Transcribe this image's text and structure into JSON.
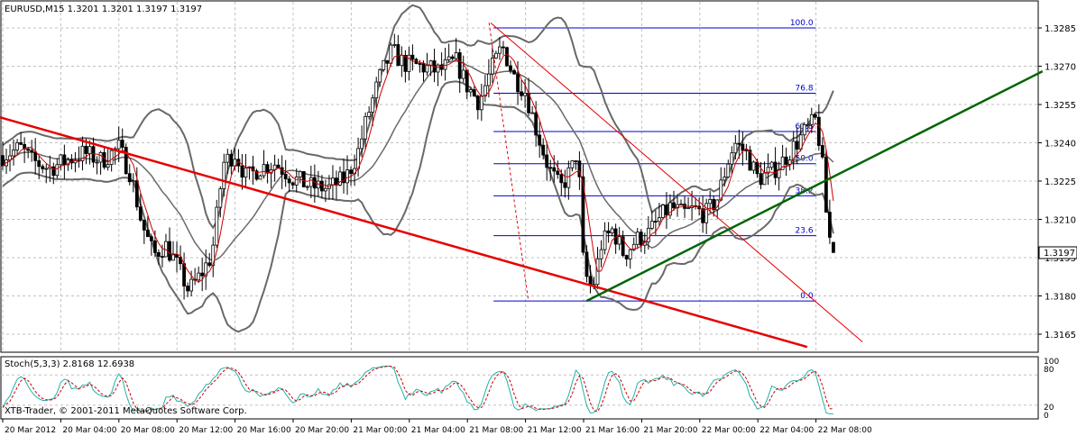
{
  "header": {
    "symbol_line": "EURUSD,M15  1.3201 1.3201 1.3197 1.3197"
  },
  "indicator": {
    "label": "Stoch(5,3,3) 2.8168 12.6938",
    "levels": [
      "80",
      "20"
    ],
    "axis_top": "100",
    "axis_bottom": "0"
  },
  "copyright": "XTB-Trader, © 2001-2011 MetaQuotes Software Corp.",
  "price_axis": {
    "ticks": [
      "1.3285",
      "1.3270",
      "1.3255",
      "1.3240",
      "1.3225",
      "1.3210",
      "1.3195",
      "1.3180",
      "1.3165"
    ],
    "current_price": "1.3197"
  },
  "time_axis": {
    "ticks": [
      "20 Mar 2012",
      "20 Mar 04:00",
      "20 Mar 08:00",
      "20 Mar 12:00",
      "20 Mar 16:00",
      "20 Mar 20:00",
      "21 Mar 00:00",
      "21 Mar 04:00",
      "21 Mar 08:00",
      "21 Mar 12:00",
      "21 Mar 16:00",
      "21 Mar 20:00",
      "22 Mar 00:00",
      "22 Mar 04:00",
      "22 Mar 08:00"
    ]
  },
  "fibonacci": {
    "levels": [
      "100.0",
      "76.8",
      "61.8",
      "50.0",
      "38.2",
      "23.6",
      "0.0"
    ],
    "values": [
      1.3285,
      1.32594,
      1.32444,
      1.32318,
      1.32192,
      1.32036,
      1.3178
    ]
  },
  "colors": {
    "background": "#ffffff",
    "grid": "#c0c0c0",
    "candle": "#000000",
    "bollinger": "#696969",
    "moving_average": "#cc0000",
    "downtrend_line": "#e60000",
    "uptrend_line": "#006400",
    "fibonacci": "#0000cc",
    "stoch_main": "#20b2aa",
    "stoch_signal": "#cc0000",
    "price_tag_bg": "#ffffff"
  },
  "chart_data": {
    "type": "candlestick",
    "title": "EURUSD,M15",
    "symbol": "EURUSD",
    "timeframe": "M15",
    "last_ohlc": {
      "open": 1.3201,
      "high": 1.3201,
      "low": 1.3197,
      "close": 1.3197
    },
    "ylim": [
      1.3159,
      1.3294
    ],
    "x_categories": [
      "20 Mar 2012",
      "20 Mar 04:00",
      "20 Mar 08:00",
      "20 Mar 12:00",
      "20 Mar 16:00",
      "20 Mar 20:00",
      "21 Mar 00:00",
      "21 Mar 04:00",
      "21 Mar 08:00",
      "21 Mar 12:00",
      "21 Mar 16:00",
      "21 Mar 20:00",
      "22 Mar 00:00",
      "22 Mar 04:00",
      "22 Mar 08:00"
    ],
    "close_path": [
      [
        0,
        1.3235
      ],
      [
        0.3,
        1.3238
      ],
      [
        0.5,
        1.3233
      ],
      [
        0.8,
        1.323
      ],
      [
        1.0,
        1.3232
      ],
      [
        1.4,
        1.3236
      ],
      [
        1.7,
        1.3233
      ],
      [
        2.0,
        1.3238
      ],
      [
        2.2,
        1.3228
      ],
      [
        2.4,
        1.3208
      ],
      [
        2.6,
        1.3196
      ],
      [
        2.8,
        1.32
      ],
      [
        3.0,
        1.3192
      ],
      [
        3.2,
        1.3182
      ],
      [
        3.4,
        1.3188
      ],
      [
        3.6,
        1.3196
      ],
      [
        3.8,
        1.3232
      ],
      [
        4.0,
        1.3236
      ],
      [
        4.2,
        1.3226
      ],
      [
        4.4,
        1.323
      ],
      [
        4.7,
        1.3232
      ],
      [
        5.0,
        1.3226
      ],
      [
        5.3,
        1.3223
      ],
      [
        5.6,
        1.3222
      ],
      [
        5.9,
        1.3226
      ],
      [
        6.1,
        1.3235
      ],
      [
        6.3,
        1.3252
      ],
      [
        6.5,
        1.3266
      ],
      [
        6.7,
        1.3276
      ],
      [
        6.9,
        1.3271
      ],
      [
        7.2,
        1.327
      ],
      [
        7.5,
        1.3268
      ],
      [
        7.8,
        1.3272
      ],
      [
        8.0,
        1.3262
      ],
      [
        8.2,
        1.3256
      ],
      [
        8.4,
        1.3268
      ],
      [
        8.6,
        1.3278
      ],
      [
        8.8,
        1.3266
      ],
      [
        9.0,
        1.326
      ],
      [
        9.2,
        1.3244
      ],
      [
        9.4,
        1.323
      ],
      [
        9.6,
        1.3222
      ],
      [
        9.8,
        1.323
      ],
      [
        9.9,
        1.3238
      ],
      [
        10.0,
        1.319
      ],
      [
        10.15,
        1.3182
      ],
      [
        10.3,
        1.32
      ],
      [
        10.5,
        1.3206
      ],
      [
        10.7,
        1.3196
      ],
      [
        10.9,
        1.3202
      ],
      [
        11.1,
        1.3204
      ],
      [
        11.3,
        1.321
      ],
      [
        11.5,
        1.3215
      ],
      [
        11.7,
        1.3212
      ],
      [
        11.9,
        1.3214
      ],
      [
        12.1,
        1.3212
      ],
      [
        12.3,
        1.3218
      ],
      [
        12.5,
        1.3234
      ],
      [
        12.6,
        1.324
      ],
      [
        12.8,
        1.3236
      ],
      [
        13.0,
        1.3226
      ],
      [
        13.2,
        1.3228
      ],
      [
        13.4,
        1.3232
      ],
      [
        13.6,
        1.3238
      ],
      [
        13.8,
        1.3244
      ],
      [
        14.0,
        1.3249
      ],
      [
        14.1,
        1.3234
      ],
      [
        14.2,
        1.3206
      ],
      [
        14.3,
        1.3197
      ]
    ],
    "fibonacci_retracement": {
      "high": 1.3285,
      "low": 1.3178
    },
    "price_scale_ticks": [
      1.3285,
      1.327,
      1.3255,
      1.324,
      1.3225,
      1.321,
      1.3195,
      1.318,
      1.3165
    ],
    "stochastic": {
      "k": 2.8168,
      "d": 12.6938,
      "levels": [
        80,
        20
      ],
      "range": [
        0,
        100
      ]
    }
  }
}
